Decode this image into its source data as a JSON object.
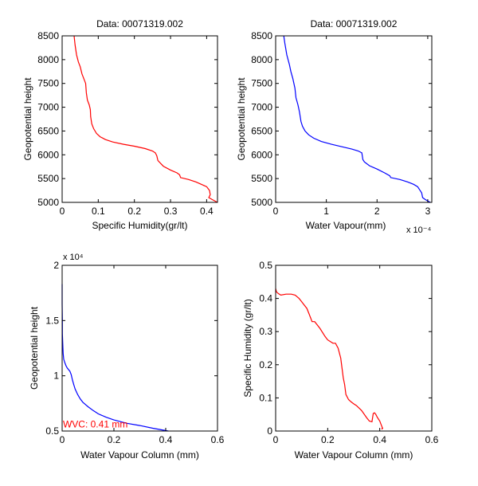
{
  "figure": {
    "background": "#ffffff"
  },
  "chart_data": [
    {
      "id": "sh-vs-height",
      "type": "line",
      "title": "Data: 00071319.002",
      "xlabel": "Specific Humidity(gr/lt)",
      "ylabel": "Geopotential height",
      "xlim": [
        0,
        0.43
      ],
      "ylim": [
        5000,
        8500
      ],
      "xticks": [
        0,
        0.1,
        0.2,
        0.3,
        0.4
      ],
      "xtick_labels": [
        "0",
        "0.1",
        "0.2",
        "0.3",
        "0.4"
      ],
      "yticks": [
        5000,
        5500,
        6000,
        6500,
        7000,
        7500,
        8000,
        8500
      ],
      "ytick_labels": [
        "5000",
        "5500",
        "6000",
        "6500",
        "7000",
        "7500",
        "8000",
        "8500"
      ],
      "x_exponent_label": "",
      "y_exponent_label": "",
      "grid": false,
      "series": [
        {
          "name": "specific humidity",
          "color": "#ff0000",
          "x": [
            0.033,
            0.036,
            0.04,
            0.045,
            0.05,
            0.055,
            0.06,
            0.065,
            0.067,
            0.07,
            0.075,
            0.078,
            0.079,
            0.082,
            0.087,
            0.095,
            0.105,
            0.12,
            0.14,
            0.17,
            0.2,
            0.23,
            0.25,
            0.258,
            0.262,
            0.265,
            0.28,
            0.3,
            0.318,
            0.325,
            0.328,
            0.35,
            0.37,
            0.385,
            0.4,
            0.408,
            0.41,
            0.406,
            0.415,
            0.43
          ],
          "y": [
            8500,
            8300,
            8100,
            7950,
            7850,
            7700,
            7600,
            7500,
            7300,
            7150,
            7050,
            6950,
            6800,
            6650,
            6550,
            6450,
            6380,
            6320,
            6270,
            6220,
            6180,
            6130,
            6080,
            6040,
            5980,
            5880,
            5760,
            5680,
            5620,
            5580,
            5520,
            5480,
            5430,
            5380,
            5330,
            5250,
            5160,
            5100,
            5060,
            5000
          ]
        }
      ]
    },
    {
      "id": "wv-vs-height",
      "type": "line",
      "title": "Data: 00071319.002",
      "xlabel": "Water Vapour(mm)",
      "ylabel": "Geopotential height",
      "xlim": [
        0,
        3.08
      ],
      "ylim": [
        5000,
        8500
      ],
      "xticks": [
        0,
        1,
        2,
        3
      ],
      "xtick_labels": [
        "0",
        "1",
        "2",
        "3"
      ],
      "yticks": [
        5000,
        5500,
        6000,
        6500,
        7000,
        7500,
        8000,
        8500
      ],
      "ytick_labels": [
        "5000",
        "5500",
        "6000",
        "6500",
        "7000",
        "7500",
        "8000",
        "8500"
      ],
      "x_exponent_label": "x 10⁻⁴",
      "y_exponent_label": "",
      "grid": false,
      "series": [
        {
          "name": "water vapour",
          "color": "#0000ff",
          "x": [
            0.16,
            0.18,
            0.22,
            0.27,
            0.3,
            0.34,
            0.38,
            0.4,
            0.44,
            0.47,
            0.5,
            0.53,
            0.58,
            0.65,
            0.75,
            0.9,
            1.1,
            1.3,
            1.5,
            1.63,
            1.7,
            1.72,
            1.75,
            1.85,
            2.0,
            2.15,
            2.25,
            2.27,
            2.45,
            2.6,
            2.72,
            2.8,
            2.88,
            2.9,
            2.95,
            3.05
          ],
          "y": [
            8500,
            8350,
            8100,
            7900,
            7750,
            7600,
            7400,
            7200,
            7050,
            6900,
            6700,
            6600,
            6500,
            6420,
            6350,
            6280,
            6220,
            6170,
            6120,
            6080,
            6040,
            5900,
            5850,
            5770,
            5700,
            5620,
            5560,
            5520,
            5480,
            5430,
            5380,
            5330,
            5200,
            5100,
            5060,
            5000
          ]
        }
      ]
    },
    {
      "id": "wvc-vs-height",
      "type": "line",
      "title": "",
      "xlabel": "Water Vapour Column (mm)",
      "ylabel": "Geopotential height",
      "xlim": [
        0,
        0.6
      ],
      "ylim": [
        0.5,
        2.0
      ],
      "xticks": [
        0,
        0.2,
        0.4,
        0.6
      ],
      "xtick_labels": [
        "0",
        "0.2",
        "0.4",
        "0.6"
      ],
      "yticks": [
        0.5,
        1.0,
        1.5,
        2.0
      ],
      "ytick_labels": [
        "0.5",
        "1",
        "1.5",
        "2"
      ],
      "x_exponent_label": "",
      "y_exponent_label": "x 10⁴",
      "grid": false,
      "annotation": {
        "text": "WVC: 0.41 mm",
        "color": "#ff0000",
        "x": 0.003,
        "y": 0.56
      },
      "series": [
        {
          "name": "water vapour column",
          "color": "#0000ff",
          "x": [
            0.0,
            0.0,
            0.001,
            0.001,
            0.003,
            0.004,
            0.006,
            0.01,
            0.015,
            0.02,
            0.03,
            0.035,
            0.04,
            0.045,
            0.05,
            0.06,
            0.07,
            0.08,
            0.1,
            0.12,
            0.14,
            0.17,
            0.2,
            0.25,
            0.3,
            0.35,
            0.41
          ],
          "y": [
            1.83,
            1.65,
            1.5,
            1.38,
            1.25,
            1.2,
            1.15,
            1.12,
            1.09,
            1.07,
            1.04,
            1.01,
            0.96,
            0.92,
            0.88,
            0.83,
            0.79,
            0.76,
            0.72,
            0.685,
            0.655,
            0.625,
            0.6,
            0.57,
            0.55,
            0.525,
            0.5
          ]
        }
      ]
    },
    {
      "id": "wvc-vs-sh",
      "type": "line",
      "title": "",
      "xlabel": "Water Vapour Column (mm)",
      "ylabel": "Specific Humidity (gr/lt)",
      "xlim": [
        0,
        0.6
      ],
      "ylim": [
        0,
        0.5
      ],
      "xticks": [
        0,
        0.2,
        0.4,
        0.6
      ],
      "xtick_labels": [
        "0",
        "0.2",
        "0.4",
        "0.6"
      ],
      "yticks": [
        0,
        0.1,
        0.2,
        0.3,
        0.4,
        0.5
      ],
      "ytick_labels": [
        "0",
        "0.1",
        "0.2",
        "0.3",
        "0.4",
        "0.5"
      ],
      "x_exponent_label": "",
      "y_exponent_label": "",
      "grid": false,
      "series": [
        {
          "name": "specific humidity",
          "color": "#ff0000",
          "x": [
            0.0,
            0.003,
            0.01,
            0.02,
            0.04,
            0.06,
            0.075,
            0.09,
            0.1,
            0.12,
            0.13,
            0.14,
            0.15,
            0.17,
            0.19,
            0.2,
            0.22,
            0.23,
            0.24,
            0.25,
            0.255,
            0.26,
            0.265,
            0.27,
            0.28,
            0.29,
            0.3,
            0.31,
            0.33,
            0.35,
            0.36,
            0.37,
            0.375,
            0.38,
            0.385,
            0.39,
            0.4,
            0.405,
            0.41,
            0.408,
            0.412
          ],
          "y": [
            0.43,
            0.42,
            0.415,
            0.41,
            0.413,
            0.413,
            0.41,
            0.4,
            0.39,
            0.37,
            0.35,
            0.33,
            0.33,
            0.31,
            0.285,
            0.275,
            0.265,
            0.265,
            0.25,
            0.22,
            0.19,
            0.16,
            0.14,
            0.11,
            0.095,
            0.088,
            0.082,
            0.077,
            0.062,
            0.04,
            0.03,
            0.028,
            0.053,
            0.055,
            0.05,
            0.042,
            0.03,
            0.02,
            0.01,
            0.005,
            0.01
          ]
        }
      ]
    }
  ]
}
